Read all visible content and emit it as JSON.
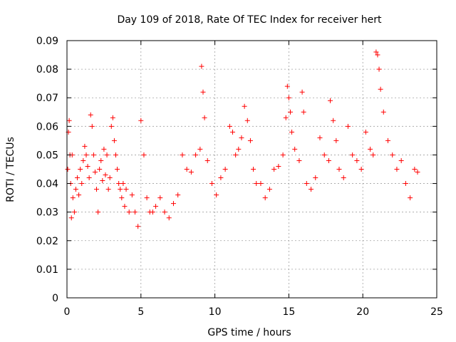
{
  "chart_data": {
    "type": "scatter",
    "title": "Day 109 of 2018, Rate Of TEC Index for receiver hert",
    "xlabel": "GPS time / hours",
    "ylabel": "ROTI / TECUs",
    "xlim": [
      0,
      25
    ],
    "ylim": [
      0,
      0.09
    ],
    "x_ticks": [
      0,
      5,
      10,
      15,
      20,
      25
    ],
    "y_ticks": [
      0,
      0.01,
      0.02,
      0.03,
      0.04,
      0.05,
      0.06,
      0.07,
      0.08,
      0.09
    ],
    "x_tick_labels": [
      "0",
      "5",
      "10",
      "15",
      "20",
      "25"
    ],
    "y_tick_labels": [
      "0",
      "0.01",
      "0.02",
      "0.03",
      "0.04",
      "0.05",
      "0.06",
      "0.07",
      "0.08",
      "0.09"
    ],
    "grid": true,
    "marker": "plus",
    "series_color": "#ff0000",
    "series": [
      {
        "x": [
          0.05,
          0.1,
          0.15,
          0.2,
          0.25,
          0.3,
          0.35,
          0.4,
          0.5,
          0.6,
          0.7,
          0.8,
          0.9,
          1.0,
          1.1,
          1.2,
          1.3,
          1.4,
          1.5,
          1.6,
          1.7,
          1.8,
          1.9,
          2.0,
          2.1,
          2.2,
          2.3,
          2.4,
          2.5,
          2.6,
          2.7,
          2.8,
          2.9,
          3.0,
          3.1,
          3.2,
          3.3,
          3.4,
          3.5,
          3.6,
          3.7,
          3.8,
          3.9,
          4.0,
          4.2,
          4.4,
          4.6,
          4.8,
          5.0,
          5.2,
          5.4,
          5.6,
          5.8,
          6.0,
          6.3,
          6.6,
          6.9,
          7.2,
          7.5,
          7.8,
          8.1,
          8.4,
          8.7,
          9.0,
          9.1,
          9.2,
          9.3,
          9.5,
          9.8,
          10.1,
          10.4,
          10.7,
          11.0,
          11.2,
          11.4,
          11.6,
          11.8,
          12.0,
          12.2,
          12.4,
          12.6,
          12.8,
          13.1,
          13.4,
          13.7,
          14.0,
          14.3,
          14.6,
          14.8,
          14.9,
          15.0,
          15.1,
          15.2,
          15.4,
          15.7,
          15.9,
          16.0,
          16.2,
          16.5,
          16.8,
          17.1,
          17.4,
          17.7,
          17.8,
          18.0,
          18.2,
          18.4,
          18.7,
          19.0,
          19.3,
          19.6,
          19.9,
          20.2,
          20.5,
          20.7,
          20.9,
          21.0,
          21.1,
          21.2,
          21.4,
          21.7,
          22.0,
          22.3,
          22.6,
          22.9,
          23.2,
          23.5,
          23.7
        ],
        "y": [
          0.045,
          0.058,
          0.062,
          0.05,
          0.04,
          0.028,
          0.05,
          0.035,
          0.03,
          0.038,
          0.042,
          0.036,
          0.045,
          0.04,
          0.048,
          0.053,
          0.05,
          0.046,
          0.042,
          0.064,
          0.06,
          0.05,
          0.044,
          0.038,
          0.03,
          0.045,
          0.048,
          0.041,
          0.052,
          0.043,
          0.05,
          0.038,
          0.042,
          0.06,
          0.063,
          0.055,
          0.05,
          0.045,
          0.04,
          0.038,
          0.035,
          0.04,
          0.032,
          0.038,
          0.03,
          0.036,
          0.03,
          0.025,
          0.062,
          0.05,
          0.035,
          0.03,
          0.03,
          0.032,
          0.035,
          0.03,
          0.028,
          0.033,
          0.036,
          0.05,
          0.045,
          0.044,
          0.05,
          0.052,
          0.081,
          0.072,
          0.063,
          0.048,
          0.04,
          0.036,
          0.042,
          0.045,
          0.06,
          0.058,
          0.05,
          0.052,
          0.056,
          0.067,
          0.062,
          0.055,
          0.045,
          0.04,
          0.04,
          0.035,
          0.038,
          0.045,
          0.046,
          0.05,
          0.063,
          0.074,
          0.07,
          0.065,
          0.058,
          0.052,
          0.048,
          0.072,
          0.065,
          0.04,
          0.038,
          0.042,
          0.056,
          0.05,
          0.048,
          0.069,
          0.062,
          0.055,
          0.045,
          0.042,
          0.06,
          0.05,
          0.048,
          0.045,
          0.058,
          0.052,
          0.05,
          0.086,
          0.085,
          0.08,
          0.073,
          0.065,
          0.055,
          0.05,
          0.045,
          0.048,
          0.04,
          0.035,
          0.045,
          0.044
        ]
      }
    ]
  }
}
